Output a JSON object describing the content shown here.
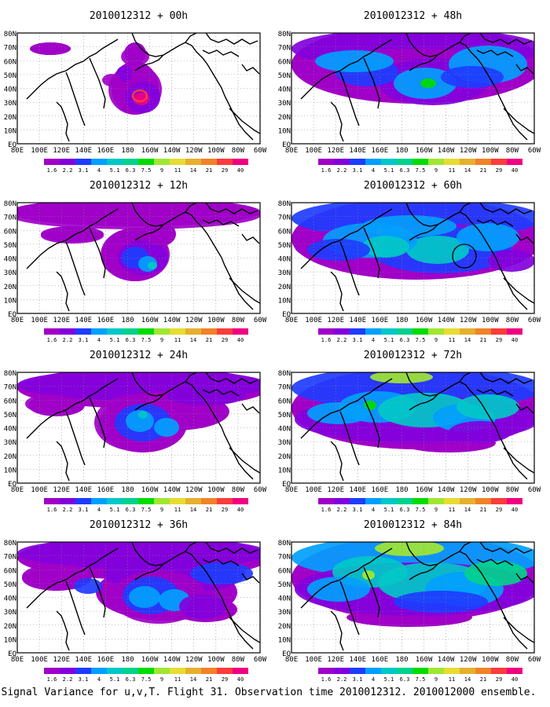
{
  "figure": {
    "caption": "Signal Variance for u,v,T. Flight 31. Observation time 2010012312. 2010012000 ensemble.",
    "lat_labels": [
      "80N",
      "70N",
      "60N",
      "50N",
      "40N",
      "30N",
      "20N",
      "10N",
      "EQ"
    ],
    "lon_labels": [
      "80E",
      "100E",
      "120E",
      "140E",
      "160E",
      "180",
      "160W",
      "140W",
      "120W",
      "100W",
      "80W",
      "60W"
    ],
    "colorbar": {
      "labels": [
        "1.6",
        "2.2",
        "3.1",
        "4",
        "5.1",
        "6.3",
        "7.5",
        "9",
        "11",
        "14",
        "21",
        "29",
        "40"
      ],
      "colors": [
        "#a000c8",
        "#8200dc",
        "#1e3cff",
        "#00a0ff",
        "#00c8c8",
        "#00d28c",
        "#00dc00",
        "#a0e632",
        "#e6dc32",
        "#e6af2d",
        "#f08228",
        "#fa3c3c",
        "#f00082"
      ]
    },
    "land_color": "#ffffff",
    "coast_color": "#000000",
    "panels": [
      {
        "id": "p00",
        "title": "2010012312 + 00h"
      },
      {
        "id": "p48",
        "title": "2010012312 + 48h"
      },
      {
        "id": "p12",
        "title": "2010012312 + 12h"
      },
      {
        "id": "p60",
        "title": "2010012312 + 60h"
      },
      {
        "id": "p24",
        "title": "2010012312 + 24h"
      },
      {
        "id": "p72",
        "title": "2010012312 + 72h"
      },
      {
        "id": "p36",
        "title": "2010012312 + 36h"
      },
      {
        "id": "p84",
        "title": "2010012312 + 84h"
      }
    ]
  }
}
